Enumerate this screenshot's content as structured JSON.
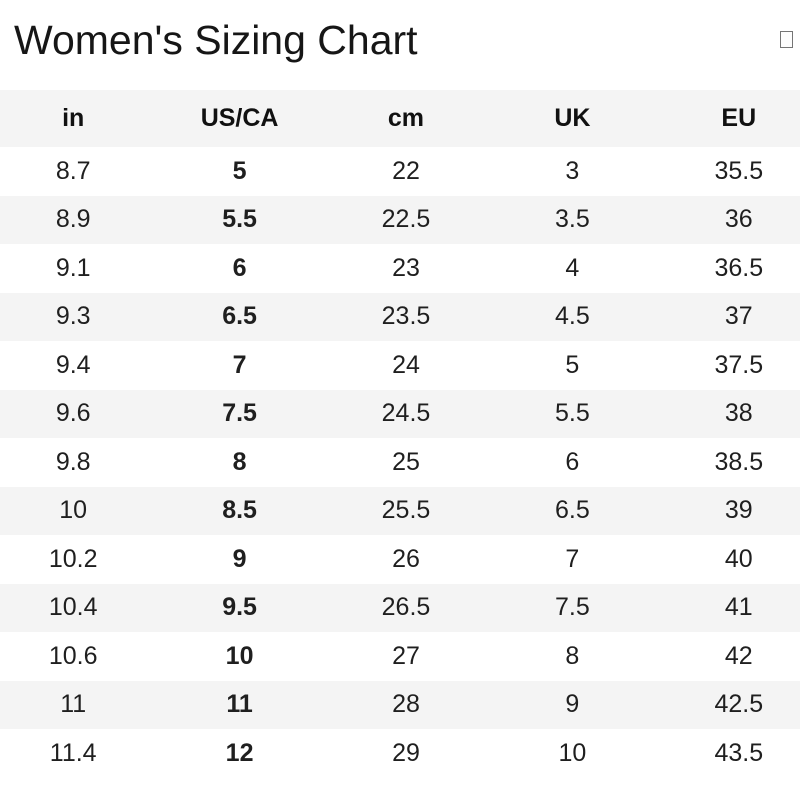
{
  "header": {
    "title": "Women's Sizing Chart"
  },
  "table": {
    "columns": [
      "in",
      "US/CA",
      "cm",
      "UK",
      "EU"
    ],
    "rows": [
      [
        "8.7",
        "5",
        "22",
        "3",
        "35.5"
      ],
      [
        "8.9",
        "5.5",
        "22.5",
        "3.5",
        "36"
      ],
      [
        "9.1",
        "6",
        "23",
        "4",
        "36.5"
      ],
      [
        "9.3",
        "6.5",
        "23.5",
        "4.5",
        "37"
      ],
      [
        "9.4",
        "7",
        "24",
        "5",
        "37.5"
      ],
      [
        "9.6",
        "7.5",
        "24.5",
        "5.5",
        "38"
      ],
      [
        "9.8",
        "8",
        "25",
        "6",
        "38.5"
      ],
      [
        "10",
        "8.5",
        "25.5",
        "6.5",
        "39"
      ],
      [
        "10.2",
        "9",
        "26",
        "7",
        "40"
      ],
      [
        "10.4",
        "9.5",
        "26.5",
        "7.5",
        "41"
      ],
      [
        "10.6",
        "10",
        "27",
        "8",
        "42"
      ],
      [
        "11",
        "11",
        "28",
        "9",
        "42.5"
      ],
      [
        "11.4",
        "12",
        "29",
        "10",
        "43.5"
      ]
    ]
  },
  "colors": {
    "stripe_bg": "#f4f4f4",
    "header_bg": "#f4f4f4",
    "text": "#1a1a1a",
    "background": "#ffffff"
  }
}
